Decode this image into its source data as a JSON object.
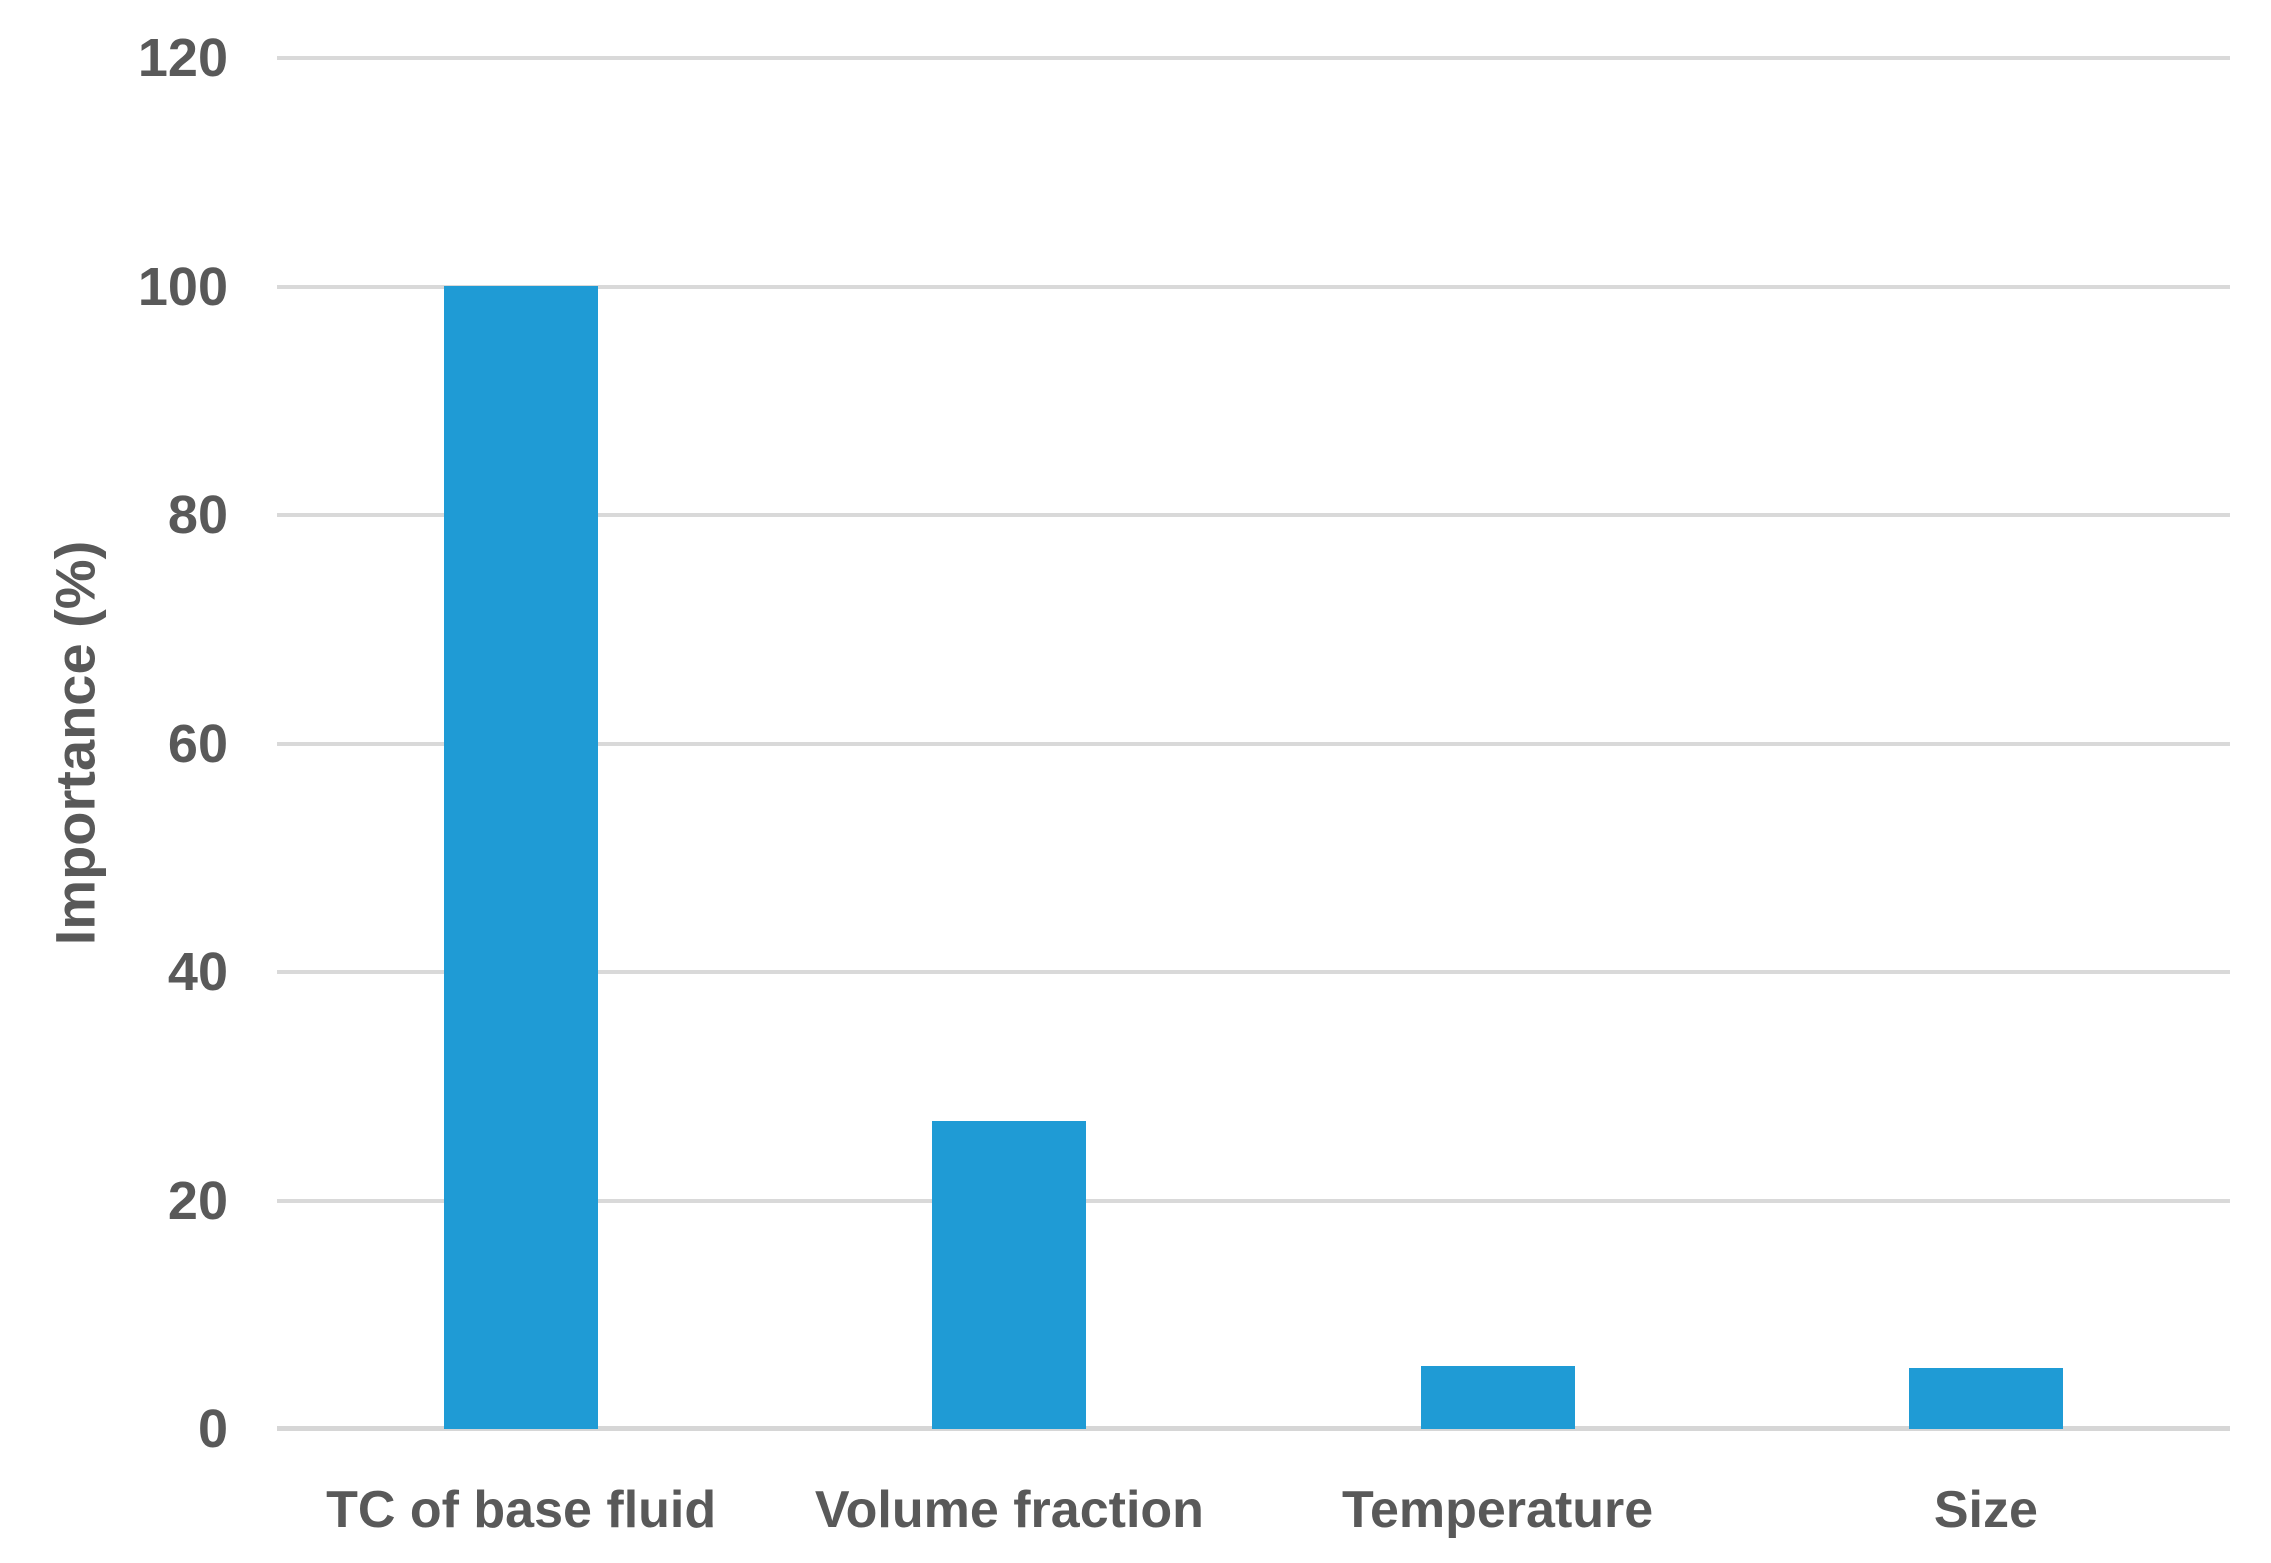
{
  "chart_data": {
    "type": "bar",
    "categories": [
      "TC of base fluid",
      "Volume fraction",
      "Temperature",
      "Size"
    ],
    "values": [
      100,
      27,
      5.5,
      5.3
    ],
    "title": "",
    "xlabel": "",
    "ylabel": "Importance (%)",
    "ylim": [
      0,
      120
    ],
    "ytick_step": 20,
    "ytick_labels": [
      "0",
      "20",
      "40",
      "60",
      "80",
      "100",
      "120"
    ],
    "grid": true,
    "legend": false,
    "colors": {
      "bar_fill": "#1f9bd5",
      "gridline": "#d9d9d9",
      "text": "#595959",
      "background": "#ffffff"
    }
  }
}
